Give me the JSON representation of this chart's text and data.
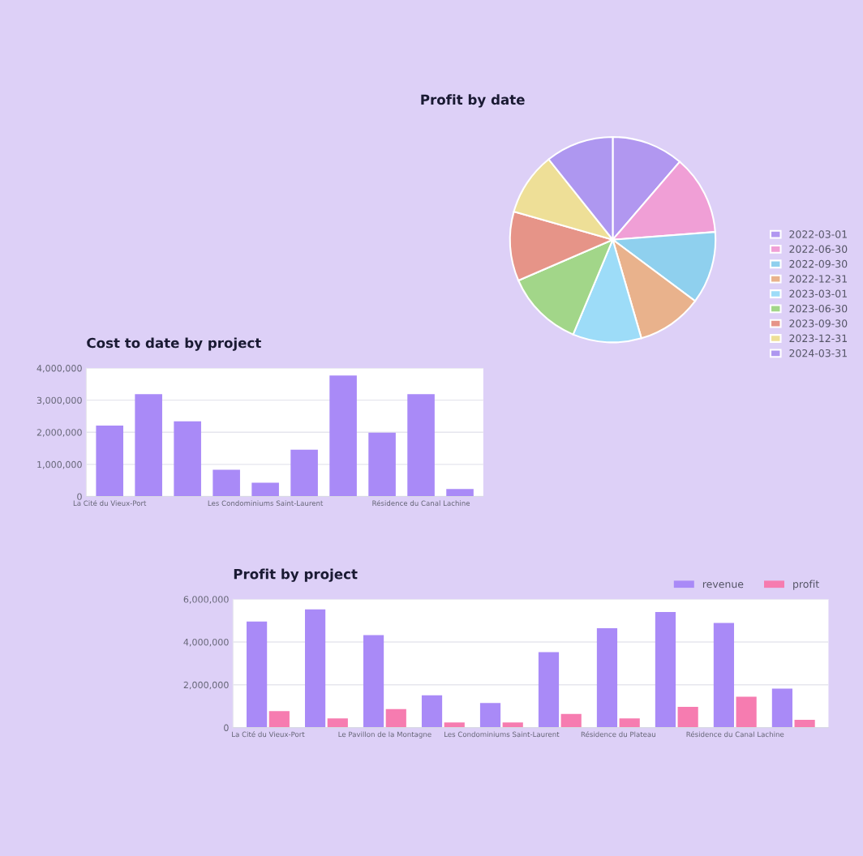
{
  "chart_data": [
    {
      "type": "pie",
      "title": "Profit by date",
      "categories": [
        "2022-03-01",
        "2022-06-30",
        "2022-09-30",
        "2022-12-31",
        "2023-03-01",
        "2023-06-30",
        "2023-09-30",
        "2023-12-31",
        "2024-03-31"
      ],
      "values": [
        11.3,
        12.5,
        11.4,
        10.3,
        10.8,
        12.2,
        10.9,
        9.9,
        10.7
      ],
      "colors": [
        "#b197f0",
        "#f09fd6",
        "#8fd0ee",
        "#e9b28c",
        "#9ddcf8",
        "#a2d689",
        "#e69488",
        "#eedf97",
        "#ae97f0"
      ],
      "legend": "bottom right"
    },
    {
      "type": "bar",
      "title": "Cost to date by project",
      "categories": [
        "La Cité du Vieux-Port",
        null,
        null,
        null,
        "Les Condominiums Saint-Laurent",
        null,
        null,
        null,
        "Résidence du Canal Lachine",
        null
      ],
      "values": [
        2210000,
        3190000,
        2340000,
        830000,
        430000,
        1460000,
        3770000,
        1990000,
        3190000,
        230000
      ],
      "color": "#a98af7",
      "ylim": [
        0,
        4000000
      ],
      "yticks": [
        0,
        {
          "value": 1000000,
          "label": "1,000,000"
        },
        {
          "value": 2000000,
          "label": "2,000,000"
        },
        {
          "value": 3000000,
          "label": "3,000,000"
        },
        {
          "value": 4000000,
          "label": "4,000,000"
        }
      ],
      "grid": "y"
    },
    {
      "type": "bar",
      "title": "Profit by project",
      "categories": [
        "La Cité du Vieux-Port",
        null,
        "Le Pavillon de la Montagne",
        null,
        "Les Condominiums Saint-Laurent",
        null,
        "Résidence du Plateau",
        null,
        "Résidence du Canal Lachine",
        null
      ],
      "series": [
        {
          "name": "revenue",
          "color": "#a98af7",
          "values": [
            4960000,
            5520000,
            4320000,
            1510000,
            1150000,
            3530000,
            4640000,
            5400000,
            4890000,
            1820000
          ]
        },
        {
          "name": "profit",
          "color": "#f67cb0",
          "values": [
            770000,
            430000,
            870000,
            240000,
            240000,
            640000,
            430000,
            970000,
            1440000,
            360000
          ]
        }
      ],
      "ylim": [
        0,
        6000000
      ],
      "yticks": [
        0,
        {
          "value": 2000000,
          "label": "2,000,000"
        },
        {
          "value": 4000000,
          "label": "4,000,000"
        },
        {
          "value": 6000000,
          "label": "6,000,000"
        }
      ],
      "grid": "y",
      "legend": "top right"
    }
  ]
}
